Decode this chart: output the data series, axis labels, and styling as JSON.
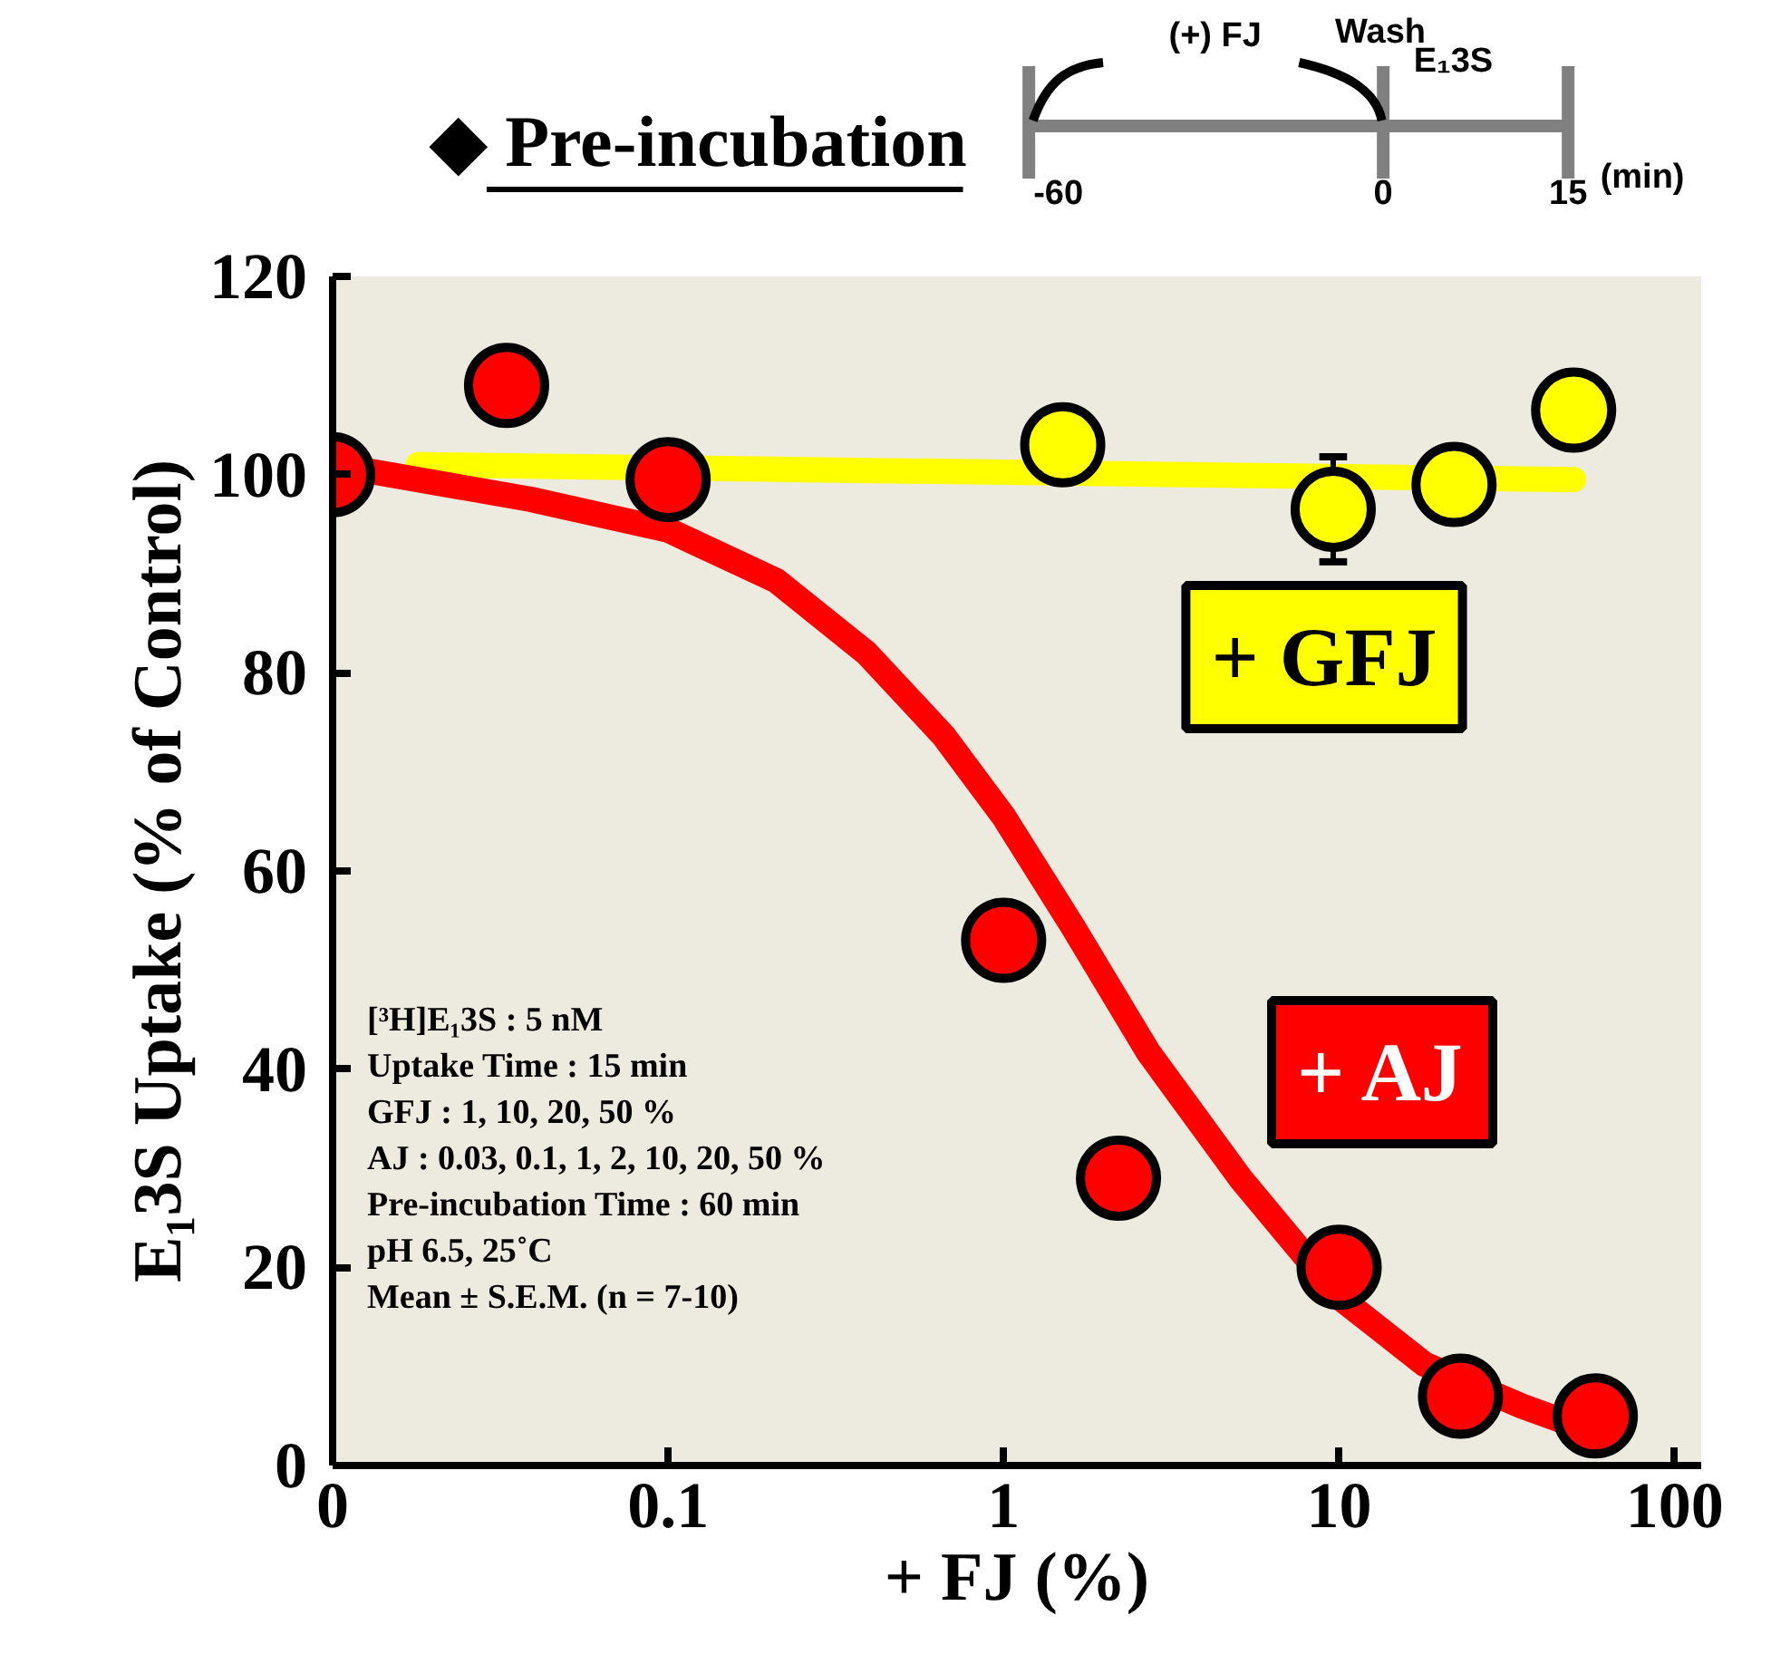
{
  "chart_data": {
    "type": "scatter",
    "title": "◆ Pre-incubation",
    "xlabel": "+ FJ (%)",
    "ylabel": "E₁3S Uptake (% of Control)",
    "log": "x",
    "xlim": [
      0.01,
      120
    ],
    "xticks": [
      {
        "value": 0.01,
        "label": "0"
      },
      0.1,
      1,
      10,
      100
    ],
    "ylim": [
      0,
      120
    ],
    "yticks": [
      0,
      20,
      40,
      60,
      80,
      100,
      120
    ],
    "grid": false,
    "legend": "right",
    "marker": "circle",
    "line_style": "solid",
    "series": [
      {
        "type": "line",
        "marker": "none",
        "color": "#ffff00",
        "x": [
          0.018,
          50
        ],
        "values": [
          101,
          99.5
        ]
      },
      {
        "type": "line",
        "marker": "none",
        "color": "#ff0000",
        "x": [
          0.01,
          0.039,
          0.1,
          0.21,
          0.39,
          0.66,
          1,
          1.6,
          2.7,
          5.1,
          10,
          18,
          35,
          58
        ],
        "values": [
          101,
          97.5,
          94.4,
          89.3,
          82,
          73.7,
          65.5,
          54.5,
          41.7,
          28.9,
          17,
          10.2,
          6,
          3.3
        ]
      },
      {
        "name": "+ GFJ",
        "color": "#ffff00",
        "x": [
          1.5,
          9.6,
          22,
          50
        ],
        "values": [
          103,
          96.5,
          99,
          106.5
        ],
        "errors": [
          null,
          5.3,
          null,
          null
        ]
      },
      {
        "name": "+ AJ",
        "color": "#ff0000",
        "x": [
          0.01,
          0.033,
          0.1,
          1,
          2.2,
          10,
          23,
          58
        ],
        "values": [
          100,
          109,
          99.5,
          53,
          29,
          20,
          7,
          5
        ]
      }
    ],
    "annotations": [
      "[³H]E₁3S : 5 nM",
      "Uptake Time : 15 min",
      "GFJ : 1, 10, 20, 50 %",
      "AJ : 0.03, 0.1, 1, 2, 10, 20, 50 %",
      "Pre-incubation Time : 60 min",
      "pH 6.5, 25˚C",
      "Mean ± S.E.M. (n = 7-10)",
      "(+) FJ",
      "Wash",
      "E₁3S",
      "-60",
      "0",
      "15",
      "(min)"
    ]
  }
}
